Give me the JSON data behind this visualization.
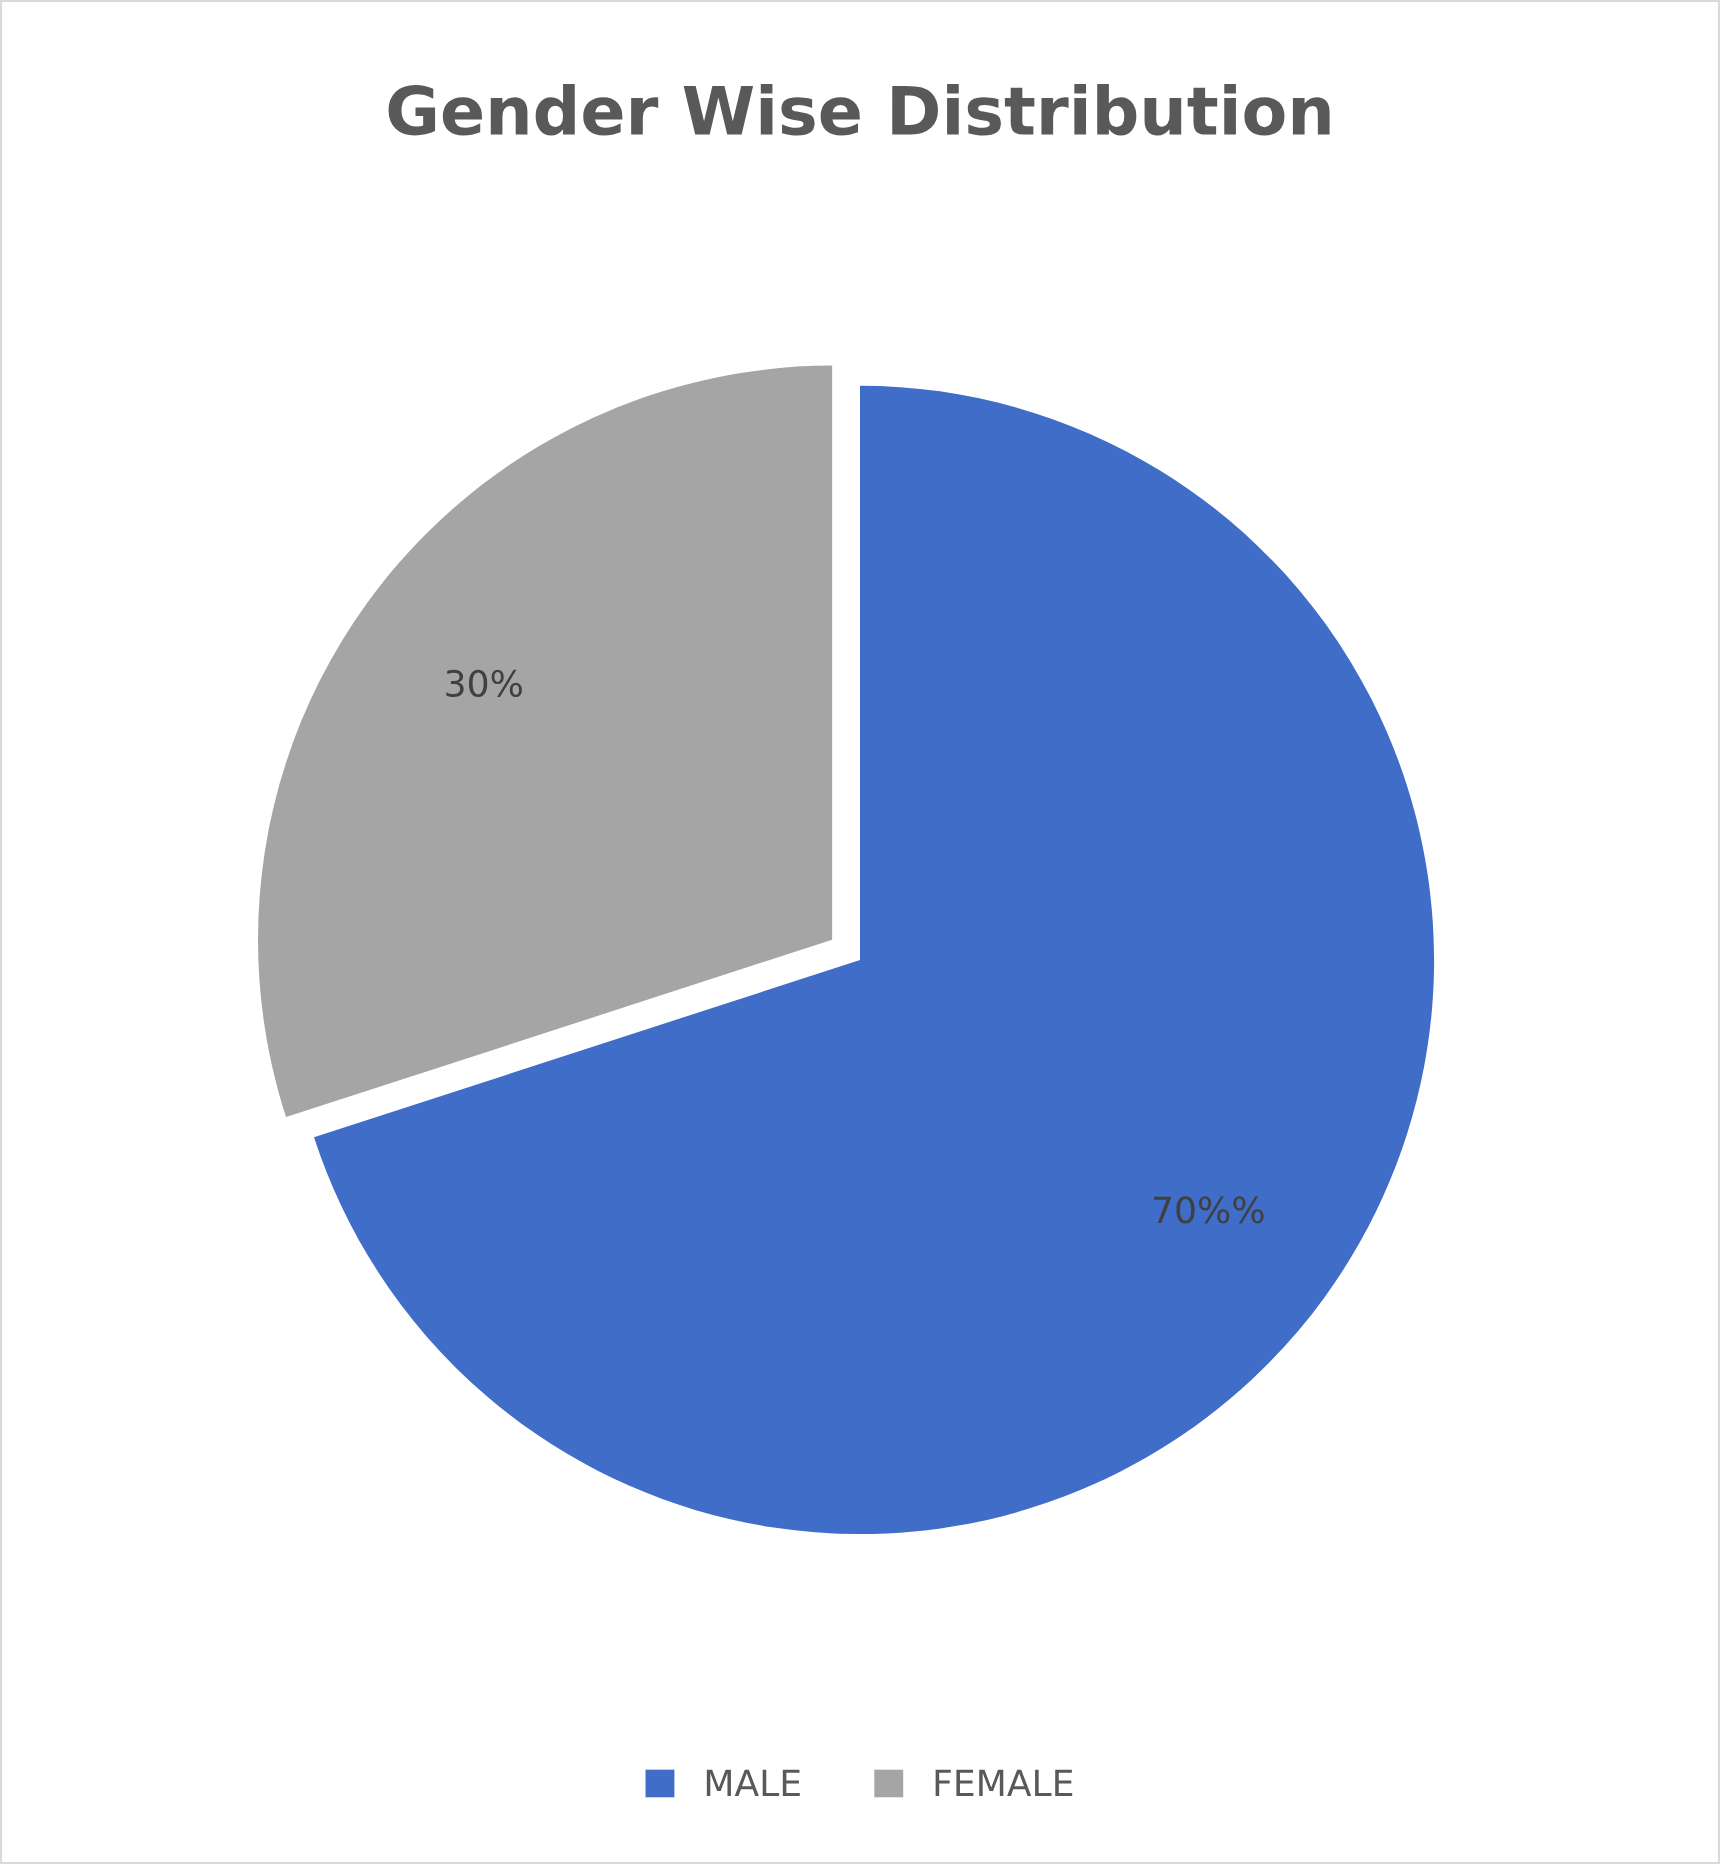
{
  "chart_data": {
    "type": "pie",
    "title": "Gender Wise Distribution",
    "categories": [
      "MALE",
      "FEMALE"
    ],
    "values": [
      70,
      30
    ],
    "colors": [
      "#3f6dc8",
      "#a5a5a5"
    ],
    "value_labels": [
      "70%%",
      "30%"
    ],
    "legend": "bottom"
  }
}
